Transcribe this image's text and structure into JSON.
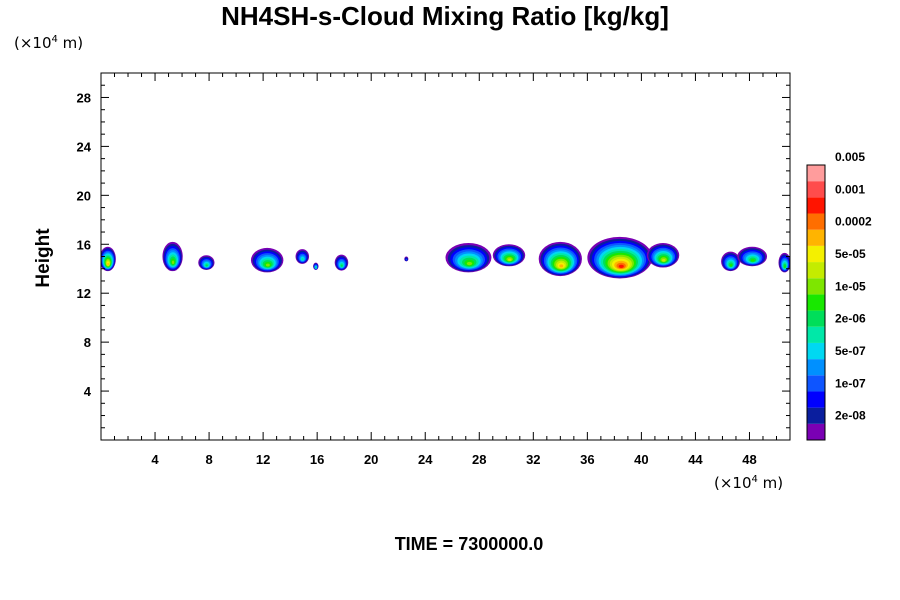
{
  "chart_data": {
    "type": "heatmap",
    "title": "NH4SH-s-Cloud Mixing Ratio [kg/kg]",
    "ylabel": "Height",
    "x_unit_base": "(×10",
    "x_unit_exp": "4",
    "x_unit_tail": " m)",
    "y_unit_base": "(×10",
    "y_unit_exp": "4",
    "y_unit_tail": " m)",
    "xlim": [
      0,
      51
    ],
    "ylim": [
      0,
      30
    ],
    "x_ticks": [
      4,
      8,
      12,
      16,
      20,
      24,
      28,
      32,
      36,
      40,
      44,
      48
    ],
    "y_ticks": [
      4,
      8,
      12,
      16,
      20,
      24,
      28
    ],
    "grid": false,
    "legend_placement": "right",
    "levels": [
      "2e-08",
      "1e-07",
      "5e-07",
      "2e-06",
      "1e-05",
      "5e-05",
      "0.0002",
      "0.001",
      "0.005"
    ],
    "colorbar_colors": [
      "#7a00b4",
      "#0a1e9e",
      "#0000ff",
      "#0e55ff",
      "#0090ff",
      "#00d8f2",
      "#00e8a8",
      "#00de5a",
      "#18e800",
      "#7ee600",
      "#c4ec00",
      "#f4f000",
      "#ffb400",
      "#ff6e00",
      "#ff1400",
      "#ff4c4c",
      "#ff9c9c"
    ],
    "clouds": [
      {
        "x": 0.5,
        "y": 14.8,
        "w": 1.2,
        "h": 2.0,
        "peak": 0.72
      },
      {
        "x": 5.3,
        "y": 15.0,
        "w": 1.5,
        "h": 2.4,
        "peak": 0.55
      },
      {
        "x": 7.8,
        "y": 14.5,
        "w": 1.2,
        "h": 1.2,
        "peak": 0.45
      },
      {
        "x": 12.3,
        "y": 14.7,
        "w": 2.4,
        "h": 2.0,
        "peak": 0.55
      },
      {
        "x": 14.9,
        "y": 15.0,
        "w": 1.0,
        "h": 1.2,
        "peak": 0.38
      },
      {
        "x": 15.9,
        "y": 14.2,
        "w": 0.4,
        "h": 0.6,
        "peak": 0.45
      },
      {
        "x": 17.8,
        "y": 14.5,
        "w": 1.0,
        "h": 1.3,
        "peak": 0.45
      },
      {
        "x": 22.6,
        "y": 14.8,
        "w": 0.3,
        "h": 0.4,
        "peak": 0.2
      },
      {
        "x": 27.2,
        "y": 14.9,
        "w": 3.4,
        "h": 2.4,
        "peak": 0.58
      },
      {
        "x": 30.2,
        "y": 15.1,
        "w": 2.4,
        "h": 1.8,
        "peak": 0.6
      },
      {
        "x": 34.0,
        "y": 14.8,
        "w": 3.2,
        "h": 2.8,
        "peak": 0.74
      },
      {
        "x": 38.4,
        "y": 14.9,
        "w": 4.8,
        "h": 3.4,
        "peak": 0.85
      },
      {
        "x": 41.6,
        "y": 15.1,
        "w": 2.4,
        "h": 2.0,
        "peak": 0.6
      },
      {
        "x": 46.6,
        "y": 14.6,
        "w": 1.4,
        "h": 1.6,
        "peak": 0.5
      },
      {
        "x": 48.2,
        "y": 15.0,
        "w": 2.2,
        "h": 1.6,
        "peak": 0.52
      },
      {
        "x": 50.6,
        "y": 14.5,
        "w": 0.9,
        "h": 1.6,
        "peak": 0.5
      }
    ]
  },
  "footer": {
    "time_label": "TIME = 7300000.0"
  }
}
